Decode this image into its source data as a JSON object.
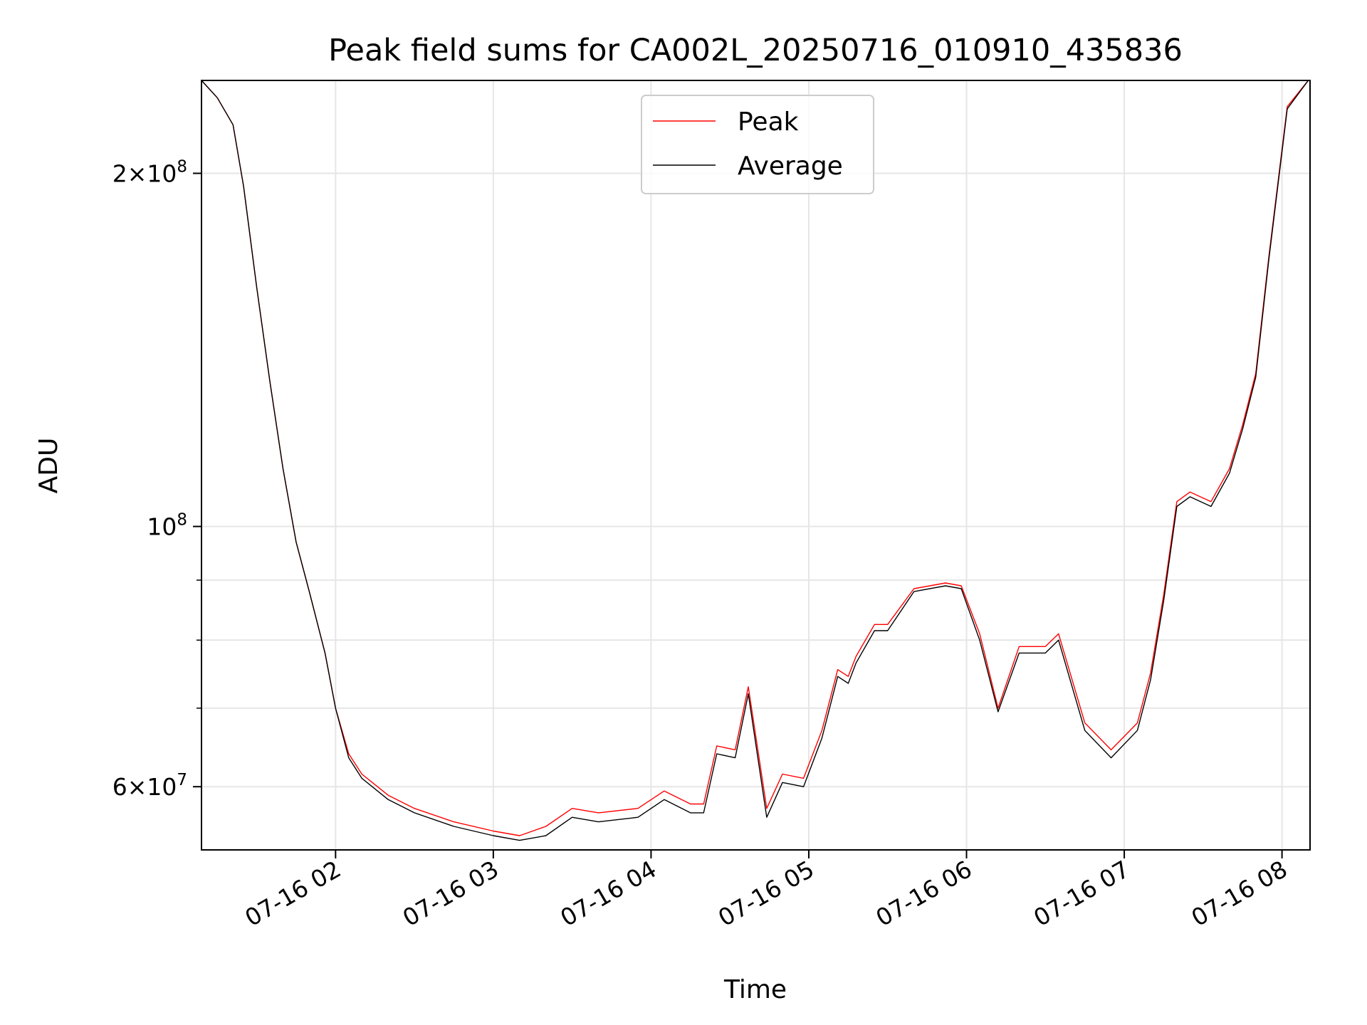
{
  "chart_data": {
    "type": "line",
    "title": "Peak field sums for CA002L_20250716_010910_435836",
    "xlabel": "Time",
    "ylabel": "ADU",
    "y_scale": "log",
    "ylim": [
      53000000,
      240000000
    ],
    "xlim": [
      "2025-07-16T01:09:00",
      "2025-07-16T08:10:40"
    ],
    "grid": true,
    "legend_position": "top-center",
    "x_ticks": [
      {
        "t": "2025-07-16T02:00",
        "label": "07-16 02"
      },
      {
        "t": "2025-07-16T03:00",
        "label": "07-16 03"
      },
      {
        "t": "2025-07-16T04:00",
        "label": "07-16 04"
      },
      {
        "t": "2025-07-16T05:00",
        "label": "07-16 05"
      },
      {
        "t": "2025-07-16T06:00",
        "label": "07-16 06"
      },
      {
        "t": "2025-07-16T07:00",
        "label": "07-16 07"
      },
      {
        "t": "2025-07-16T08:00",
        "label": "07-16 08"
      }
    ],
    "y_major_ticks": [
      {
        "value": 60000000,
        "mantissa": "6",
        "exp": "7"
      },
      {
        "value": 100000000,
        "mantissa": "",
        "exp": "8"
      },
      {
        "value": 200000000,
        "mantissa": "2",
        "exp": "8"
      }
    ],
    "y_minor_ticks": [
      70000000,
      80000000,
      90000000
    ],
    "series": [
      {
        "name": "Peak",
        "color": "#ff0000",
        "x": [
          "2025-07-16T01:09",
          "2025-07-16T01:15",
          "2025-07-16T01:21",
          "2025-07-16T01:25",
          "2025-07-16T01:30",
          "2025-07-16T01:35",
          "2025-07-16T01:40",
          "2025-07-16T01:45",
          "2025-07-16T01:50",
          "2025-07-16T01:56",
          "2025-07-16T02:00",
          "2025-07-16T02:05",
          "2025-07-16T02:10",
          "2025-07-16T02:20",
          "2025-07-16T02:30",
          "2025-07-16T02:45",
          "2025-07-16T03:00",
          "2025-07-16T03:10",
          "2025-07-16T03:20",
          "2025-07-16T03:30",
          "2025-07-16T03:40",
          "2025-07-16T03:55",
          "2025-07-16T04:05",
          "2025-07-16T04:15",
          "2025-07-16T04:20",
          "2025-07-16T04:25",
          "2025-07-16T04:32",
          "2025-07-16T04:37",
          "2025-07-16T04:44",
          "2025-07-16T04:50",
          "2025-07-16T04:58",
          "2025-07-16T05:05",
          "2025-07-16T05:11",
          "2025-07-16T05:15",
          "2025-07-16T05:18",
          "2025-07-16T05:25",
          "2025-07-16T05:30",
          "2025-07-16T05:40",
          "2025-07-16T05:52",
          "2025-07-16T05:58",
          "2025-07-16T06:05",
          "2025-07-16T06:12",
          "2025-07-16T06:20",
          "2025-07-16T06:30",
          "2025-07-16T06:35",
          "2025-07-16T06:45",
          "2025-07-16T06:55",
          "2025-07-16T07:05",
          "2025-07-16T07:10",
          "2025-07-16T07:15",
          "2025-07-16T07:20",
          "2025-07-16T07:25",
          "2025-07-16T07:33",
          "2025-07-16T07:40",
          "2025-07-16T07:45",
          "2025-07-16T07:50",
          "2025-07-16T07:55",
          "2025-07-16T08:02",
          "2025-07-16T08:10"
        ],
        "values": [
          240000000,
          232000000,
          220000000,
          195000000,
          160000000,
          133000000,
          112000000,
          97000000,
          88000000,
          78000000,
          70000000,
          64000000,
          61500000,
          59000000,
          57500000,
          56000000,
          55000000,
          54500000,
          55500000,
          57500000,
          57000000,
          57500000,
          59500000,
          58000000,
          58000000,
          65000000,
          64500000,
          73000000,
          57500000,
          61500000,
          61000000,
          67000000,
          75500000,
          74500000,
          77500000,
          82500000,
          82500000,
          88500000,
          89500000,
          89000000,
          81000000,
          70000000,
          79000000,
          79000000,
          81000000,
          68000000,
          64500000,
          68000000,
          75000000,
          87500000,
          105000000,
          107000000,
          105000000,
          112000000,
          122000000,
          135000000,
          170000000,
          228000000,
          240000000
        ]
      },
      {
        "name": "Average",
        "color": "#000000",
        "x": [
          "2025-07-16T01:09",
          "2025-07-16T01:15",
          "2025-07-16T01:21",
          "2025-07-16T01:25",
          "2025-07-16T01:30",
          "2025-07-16T01:35",
          "2025-07-16T01:40",
          "2025-07-16T01:45",
          "2025-07-16T01:50",
          "2025-07-16T01:56",
          "2025-07-16T02:00",
          "2025-07-16T02:05",
          "2025-07-16T02:10",
          "2025-07-16T02:20",
          "2025-07-16T02:30",
          "2025-07-16T02:45",
          "2025-07-16T03:00",
          "2025-07-16T03:10",
          "2025-07-16T03:20",
          "2025-07-16T03:30",
          "2025-07-16T03:40",
          "2025-07-16T03:55",
          "2025-07-16T04:05",
          "2025-07-16T04:15",
          "2025-07-16T04:20",
          "2025-07-16T04:25",
          "2025-07-16T04:32",
          "2025-07-16T04:37",
          "2025-07-16T04:44",
          "2025-07-16T04:50",
          "2025-07-16T04:58",
          "2025-07-16T05:05",
          "2025-07-16T05:11",
          "2025-07-16T05:15",
          "2025-07-16T05:18",
          "2025-07-16T05:25",
          "2025-07-16T05:30",
          "2025-07-16T05:40",
          "2025-07-16T05:52",
          "2025-07-16T05:58",
          "2025-07-16T06:05",
          "2025-07-16T06:12",
          "2025-07-16T06:20",
          "2025-07-16T06:30",
          "2025-07-16T06:35",
          "2025-07-16T06:45",
          "2025-07-16T06:55",
          "2025-07-16T07:05",
          "2025-07-16T07:10",
          "2025-07-16T07:15",
          "2025-07-16T07:20",
          "2025-07-16T07:25",
          "2025-07-16T07:33",
          "2025-07-16T07:40",
          "2025-07-16T07:45",
          "2025-07-16T07:50",
          "2025-07-16T07:55",
          "2025-07-16T08:02",
          "2025-07-16T08:10"
        ],
        "values": [
          240000000,
          232000000,
          220000000,
          195000000,
          160000000,
          133000000,
          112000000,
          97000000,
          88000000,
          78000000,
          70000000,
          63500000,
          61000000,
          58500000,
          57000000,
          55500000,
          54500000,
          54000000,
          54500000,
          56500000,
          56000000,
          56500000,
          58500000,
          57000000,
          57000000,
          64000000,
          63500000,
          72000000,
          56500000,
          60500000,
          60000000,
          66000000,
          74500000,
          73500000,
          76500000,
          81500000,
          81500000,
          88000000,
          89000000,
          88500000,
          80000000,
          69500000,
          78000000,
          78000000,
          80000000,
          67000000,
          63500000,
          67000000,
          74000000,
          86500000,
          104000000,
          106000000,
          104000000,
          111000000,
          121000000,
          134000000,
          169000000,
          227000000,
          240000000
        ]
      }
    ]
  }
}
